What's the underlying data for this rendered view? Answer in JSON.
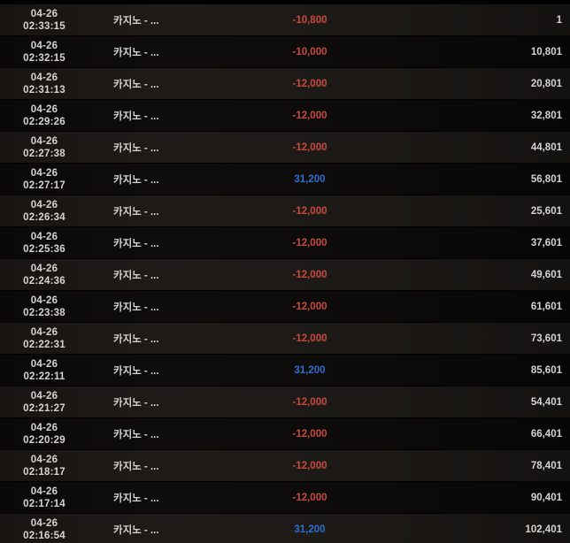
{
  "table": {
    "name": "betting-history",
    "colors": {
      "text": "#d6d4d1",
      "negative": "#c94a40",
      "positive": "#2f6fd0",
      "row_light": "#1c1916",
      "row_dark": "#0c0b0a"
    },
    "columns": [
      "datetime",
      "game",
      "amount",
      "balance"
    ],
    "rows": [
      {
        "date": "04-26",
        "time": "02:33:15",
        "game": "카지노 - ...",
        "amount": "-10,800",
        "amount_type": "negative",
        "balance": "1"
      },
      {
        "date": "04-26",
        "time": "02:32:15",
        "game": "카지노 - ...",
        "amount": "-10,000",
        "amount_type": "negative",
        "balance": "10,801"
      },
      {
        "date": "04-26",
        "time": "02:31:13",
        "game": "카지노 - ...",
        "amount": "-12,000",
        "amount_type": "negative",
        "balance": "20,801"
      },
      {
        "date": "04-26",
        "time": "02:29:26",
        "game": "카지노 - ...",
        "amount": "-12,000",
        "amount_type": "negative",
        "balance": "32,801"
      },
      {
        "date": "04-26",
        "time": "02:27:38",
        "game": "카지노 - ...",
        "amount": "-12,000",
        "amount_type": "negative",
        "balance": "44,801"
      },
      {
        "date": "04-26",
        "time": "02:27:17",
        "game": "카지노 - ...",
        "amount": "31,200",
        "amount_type": "positive",
        "balance": "56,801"
      },
      {
        "date": "04-26",
        "time": "02:26:34",
        "game": "카지노 - ...",
        "amount": "-12,000",
        "amount_type": "negative",
        "balance": "25,601"
      },
      {
        "date": "04-26",
        "time": "02:25:36",
        "game": "카지노 - ...",
        "amount": "-12,000",
        "amount_type": "negative",
        "balance": "37,601"
      },
      {
        "date": "04-26",
        "time": "02:24:36",
        "game": "카지노 - ...",
        "amount": "-12,000",
        "amount_type": "negative",
        "balance": "49,601"
      },
      {
        "date": "04-26",
        "time": "02:23:38",
        "game": "카지노 - ...",
        "amount": "-12,000",
        "amount_type": "negative",
        "balance": "61,601"
      },
      {
        "date": "04-26",
        "time": "02:22:31",
        "game": "카지노 - ...",
        "amount": "-12,000",
        "amount_type": "negative",
        "balance": "73,601"
      },
      {
        "date": "04-26",
        "time": "02:22:11",
        "game": "카지노 - ...",
        "amount": "31,200",
        "amount_type": "positive",
        "balance": "85,601"
      },
      {
        "date": "04-26",
        "time": "02:21:27",
        "game": "카지노 - ...",
        "amount": "-12,000",
        "amount_type": "negative",
        "balance": "54,401"
      },
      {
        "date": "04-26",
        "time": "02:20:29",
        "game": "카지노 - ...",
        "amount": "-12,000",
        "amount_type": "negative",
        "balance": "66,401"
      },
      {
        "date": "04-26",
        "time": "02:18:17",
        "game": "카지노 - ...",
        "amount": "-12,000",
        "amount_type": "negative",
        "balance": "78,401"
      },
      {
        "date": "04-26",
        "time": "02:17:14",
        "game": "카지노 - ...",
        "amount": "-12,000",
        "amount_type": "negative",
        "balance": "90,401"
      },
      {
        "date": "04-26",
        "time": "02:16:54",
        "game": "카지노 - ...",
        "amount": "31,200",
        "amount_type": "positive",
        "balance": "102,401"
      }
    ]
  }
}
